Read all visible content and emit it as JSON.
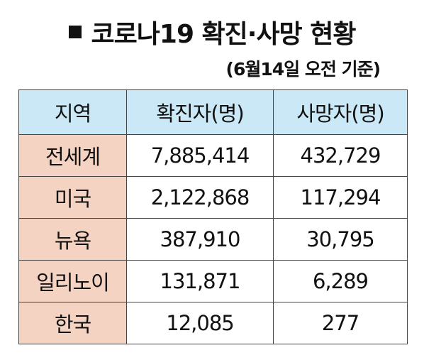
{
  "title": "코로나19 확진·사망 현황",
  "subtitle": "(6월14일 오전 기준)",
  "table": {
    "headers": [
      "지역",
      "확진자(명)",
      "사망자(명)"
    ],
    "rows": [
      {
        "region": "전세계",
        "confirmed": "7,885,414",
        "deaths": "432,729"
      },
      {
        "region": "미국",
        "confirmed": "2,122,868",
        "deaths": "117,294"
      },
      {
        "region": "뉴욕",
        "confirmed": "387,910",
        "deaths": "30,795"
      },
      {
        "region": "일리노이",
        "confirmed": "131,871",
        "deaths": "6,289"
      },
      {
        "region": "한국",
        "confirmed": "12,085",
        "deaths": "277"
      }
    ]
  },
  "colors": {
    "header_bg": "#cbe8f7",
    "region_bg": "#f4d3c2",
    "border": "#444444"
  }
}
